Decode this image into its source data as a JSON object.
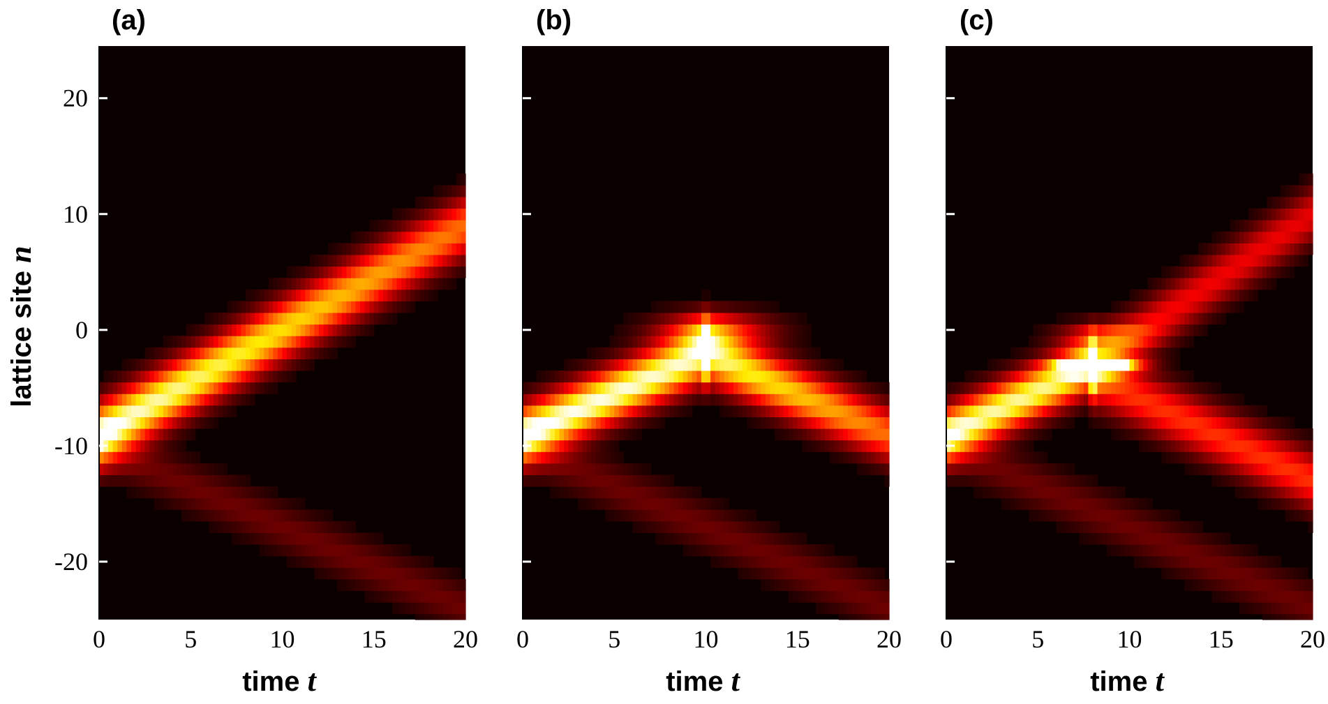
{
  "chart_data": [
    {
      "type": "heatmap",
      "panel_label": "(a)",
      "xlabel": "time",
      "xlabel_var": "t",
      "ylabel": "lattice site",
      "ylabel_var": "n",
      "xlim": [
        0,
        20
      ],
      "ylim": [
        -25,
        24.5
      ],
      "x_ticks": [
        0,
        5,
        10,
        15,
        20
      ],
      "y_ticks": [
        -20,
        -10,
        0,
        10,
        20
      ],
      "y_tick_labels": [
        "-20",
        "-10",
        "0",
        "10",
        "20"
      ],
      "colormap": "hot",
      "background": "#0a0000",
      "beams": [
        {
          "t": [
            0,
            20
          ],
          "n": [
            -9,
            9
          ],
          "peak": 1.0,
          "width": 2.6,
          "fade_to": 0.6
        },
        {
          "t": [
            0,
            20
          ],
          "n": [
            -10,
            -24
          ],
          "peak": 0.16,
          "width": 2.2,
          "fade_to": 0.16
        }
      ],
      "spots": []
    },
    {
      "type": "heatmap",
      "panel_label": "(b)",
      "xlabel": "time",
      "xlabel_var": "t",
      "xlim": [
        0,
        20
      ],
      "ylim": [
        -25,
        24.5
      ],
      "x_ticks": [
        0,
        5,
        10,
        15,
        20
      ],
      "y_ticks": [
        -20,
        -10,
        0,
        10,
        20
      ],
      "colormap": "hot",
      "background": "#0a0000",
      "beams": [
        {
          "t": [
            0,
            10
          ],
          "n": [
            -9,
            -2
          ],
          "peak": 1.0,
          "width": 2.4,
          "fade_to": 0.95
        },
        {
          "t": [
            10,
            20
          ],
          "n": [
            -2,
            -9
          ],
          "peak": 0.92,
          "width": 2.4,
          "fade_to": 0.6
        },
        {
          "t": [
            0,
            20
          ],
          "n": [
            -10,
            -24
          ],
          "peak": 0.16,
          "width": 2.2,
          "fade_to": 0.16
        }
      ],
      "spots": [
        {
          "t": 10.5,
          "n": 0,
          "peak": 0.45,
          "rt": 3.2,
          "rn": 1.6
        }
      ]
    },
    {
      "type": "heatmap",
      "panel_label": "(c)",
      "xlabel": "time",
      "xlabel_var": "t",
      "xlim": [
        0,
        20
      ],
      "ylim": [
        -25,
        24.5
      ],
      "x_ticks": [
        0,
        5,
        10,
        15,
        20
      ],
      "y_ticks": [
        -20,
        -10,
        0,
        10,
        20
      ],
      "colormap": "hot",
      "background": "#0a0000",
      "beams": [
        {
          "t": [
            0,
            8
          ],
          "n": [
            -9,
            -3
          ],
          "peak": 0.95,
          "width": 2.3,
          "fade_to": 0.9
        },
        {
          "t": [
            8,
            20
          ],
          "n": [
            -3,
            10
          ],
          "peak": 0.42,
          "width": 2.4,
          "fade_to": 0.38
        },
        {
          "t": [
            8,
            20
          ],
          "n": [
            -4,
            -13
          ],
          "peak": 0.5,
          "width": 2.5,
          "fade_to": 0.5
        },
        {
          "t": [
            0,
            20
          ],
          "n": [
            -10,
            -24
          ],
          "peak": 0.16,
          "width": 2.2,
          "fade_to": 0.16
        }
      ],
      "spots": [
        {
          "t": 8.3,
          "n": -3,
          "peak": 1.1,
          "rt": 2.0,
          "rn": 0.7
        },
        {
          "t": 8.5,
          "n": -0.5,
          "peak": 0.35,
          "rt": 2.4,
          "rn": 1.2
        }
      ]
    }
  ]
}
